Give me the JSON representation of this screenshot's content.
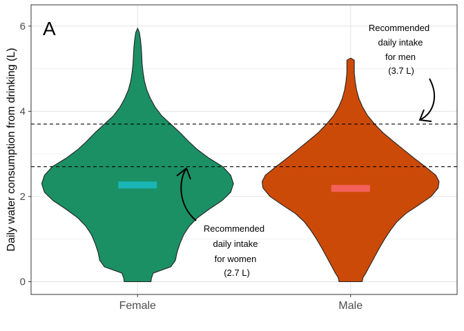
{
  "chart_data": {
    "type": "violin",
    "panel_label": "A",
    "title": "",
    "xlabel": "",
    "ylabel": "Daily water consumption from drinking (L)",
    "ylim": [
      -0.3,
      6.5
    ],
    "y_ticks": [
      0,
      2,
      4,
      6
    ],
    "categories": [
      "Female",
      "Male"
    ],
    "grid": true,
    "series": [
      {
        "category": "Female",
        "fill": "#1b9064",
        "median_color": "#1ab5b5",
        "median": 2.27,
        "profile": [
          [
            0,
            0.29
          ],
          [
            0.08,
            0.3
          ],
          [
            0.2,
            0.34
          ],
          [
            0.35,
            0.72
          ],
          [
            0.5,
            0.82
          ],
          [
            0.7,
            0.86
          ],
          [
            0.9,
            0.92
          ],
          [
            1.1,
            1.0
          ],
          [
            1.3,
            1.12
          ],
          [
            1.5,
            1.3
          ],
          [
            1.7,
            1.55
          ],
          [
            1.9,
            1.83
          ],
          [
            2.1,
            2.02
          ],
          [
            2.3,
            2.08
          ],
          [
            2.5,
            2.02
          ],
          [
            2.7,
            1.85
          ],
          [
            2.9,
            1.55
          ],
          [
            3.1,
            1.3
          ],
          [
            3.3,
            1.1
          ],
          [
            3.5,
            0.92
          ],
          [
            3.7,
            0.72
          ],
          [
            3.9,
            0.52
          ],
          [
            4.1,
            0.38
          ],
          [
            4.3,
            0.28
          ],
          [
            4.5,
            0.2
          ],
          [
            4.7,
            0.15
          ],
          [
            4.9,
            0.12
          ],
          [
            5.1,
            0.1
          ],
          [
            5.3,
            0.09
          ],
          [
            5.5,
            0.08
          ],
          [
            5.7,
            0.06
          ],
          [
            5.85,
            0.04
          ],
          [
            5.95,
            0.0
          ]
        ]
      },
      {
        "category": "Male",
        "fill": "#cc4a08",
        "median_color": "#f4615a",
        "median": 2.19,
        "profile": [
          [
            0,
            0.25
          ],
          [
            0.1,
            0.27
          ],
          [
            0.2,
            0.33
          ],
          [
            0.4,
            0.43
          ],
          [
            0.6,
            0.53
          ],
          [
            0.8,
            0.63
          ],
          [
            1.0,
            0.74
          ],
          [
            1.2,
            0.86
          ],
          [
            1.4,
            1.0
          ],
          [
            1.6,
            1.2
          ],
          [
            1.8,
            1.48
          ],
          [
            2.0,
            1.75
          ],
          [
            2.2,
            1.9
          ],
          [
            2.35,
            1.92
          ],
          [
            2.5,
            1.85
          ],
          [
            2.7,
            1.62
          ],
          [
            2.9,
            1.38
          ],
          [
            3.1,
            1.15
          ],
          [
            3.3,
            0.92
          ],
          [
            3.5,
            0.7
          ],
          [
            3.7,
            0.52
          ],
          [
            3.9,
            0.37
          ],
          [
            4.1,
            0.26
          ],
          [
            4.3,
            0.18
          ],
          [
            4.5,
            0.13
          ],
          [
            4.7,
            0.1
          ],
          [
            4.9,
            0.08
          ],
          [
            5.1,
            0.08
          ],
          [
            5.2,
            0.08
          ],
          [
            5.25,
            0.0
          ]
        ]
      }
    ],
    "reference_lines": [
      2.7,
      3.7
    ],
    "annotations": [
      {
        "lines": [
          "Recommended",
          "daily intake",
          "for women",
          "(2.7 L)"
        ]
      },
      {
        "lines": [
          "Recommended",
          "daily intake",
          "for men",
          "(3.7 L)"
        ]
      }
    ]
  }
}
